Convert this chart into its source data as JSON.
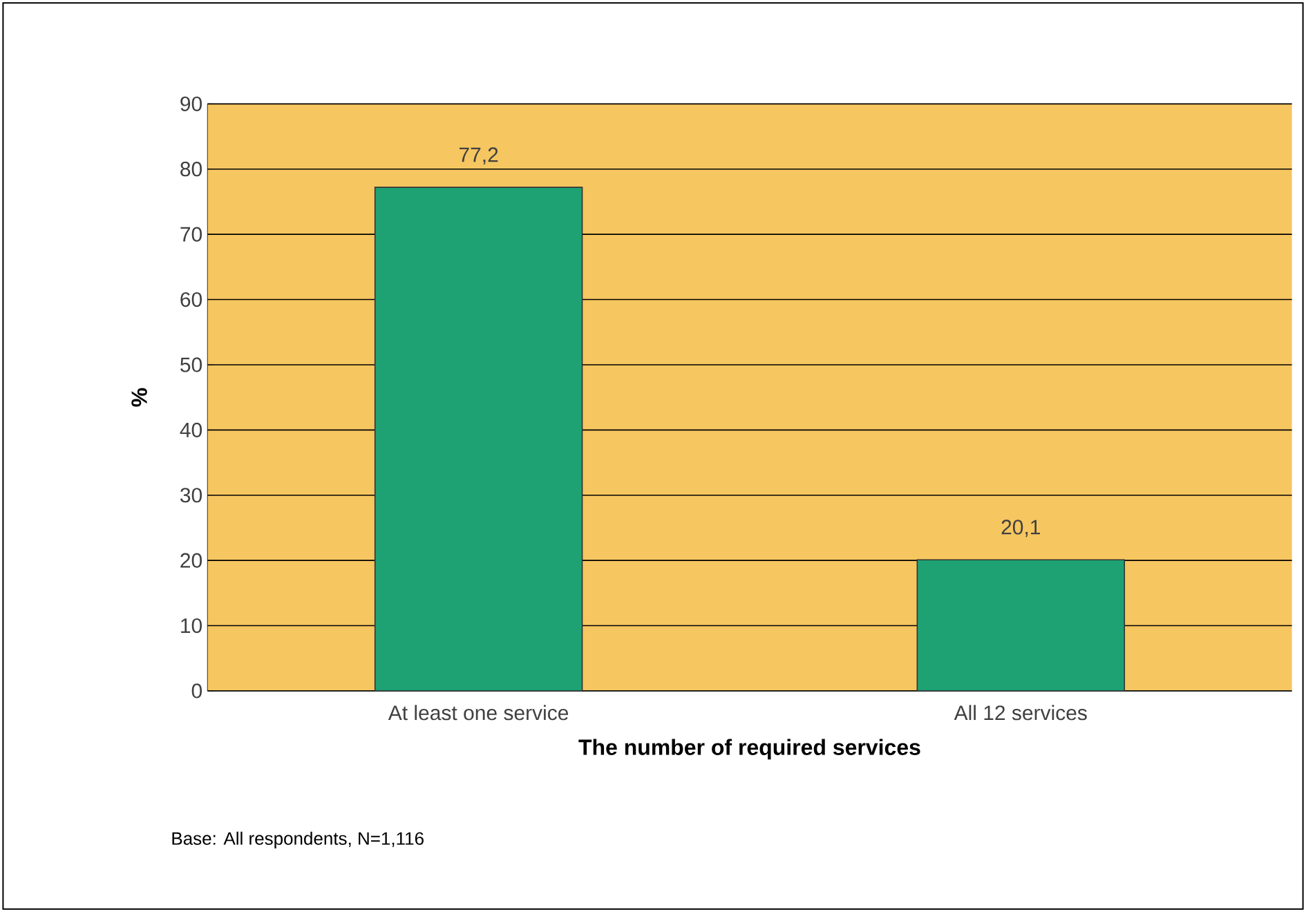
{
  "chart_data": {
    "type": "bar",
    "xlabel": "The number of required services",
    "ylabel": "%",
    "categories": [
      "At least one service",
      "All 12 services"
    ],
    "values": [
      77.2,
      20.1
    ],
    "value_labels": [
      "77,2",
      "20,1"
    ],
    "color": "#1ea274",
    "ylim": [
      0,
      90
    ],
    "yticks": [
      0,
      10,
      20,
      30,
      40,
      50,
      60,
      70,
      80,
      90
    ],
    "grid": "y",
    "annotations": [
      "Base: All respondents, N=1,116"
    ]
  }
}
